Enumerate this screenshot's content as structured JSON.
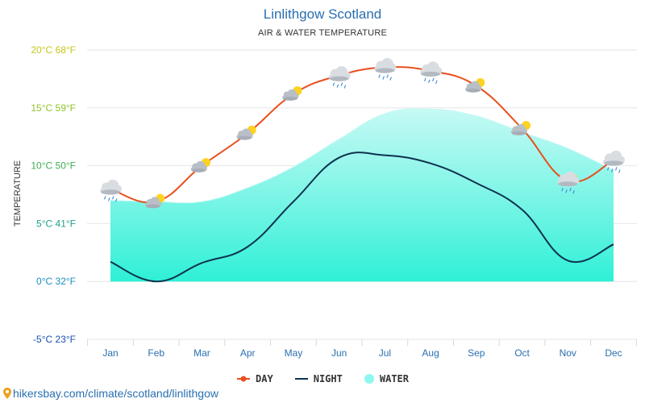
{
  "title": "Linlithgow Scotland",
  "subtitle": "AIR & WATER TEMPERATURE",
  "footer_url": "hikersbay.com/climate/scotland/linlithgow",
  "colors": {
    "day": "#e8501e",
    "night": "#0d3350",
    "water": "#8ff7ee",
    "water_bottom": "#2ef0d6",
    "grid": "#e6e6e6",
    "month_label": "#2a6fb0"
  },
  "legend": [
    {
      "label": "DAY",
      "key": "day",
      "marker": "line-dot"
    },
    {
      "label": "NIGHT",
      "key": "night",
      "marker": "line"
    },
    {
      "label": "WATER",
      "key": "water",
      "marker": "circle"
    }
  ],
  "chart_data": {
    "type": "line",
    "ylabel": "TEMPERATURE",
    "ylim": [
      -5,
      20
    ],
    "yticks": [
      {
        "value": 20,
        "label": "20°C 68°F",
        "color": "#c6c61a"
      },
      {
        "value": 15,
        "label": "15°C 59°F",
        "color": "#8fc52a"
      },
      {
        "value": 10,
        "label": "10°C 50°F",
        "color": "#3fae55"
      },
      {
        "value": 5,
        "label": "5°C 41°F",
        "color": "#1f9f8a"
      },
      {
        "value": 0,
        "label": "0°C 32°F",
        "color": "#1a8fc0"
      },
      {
        "value": -5,
        "label": "-5°C 23°F",
        "color": "#1a4fb0"
      }
    ],
    "categories": [
      "Jan",
      "Feb",
      "Mar",
      "Apr",
      "May",
      "Jun",
      "Jul",
      "Aug",
      "Sep",
      "Oct",
      "Nov",
      "Dec"
    ],
    "series": [
      {
        "name": "DAY",
        "key": "day",
        "values": [
          8.0,
          6.9,
          10.0,
          12.8,
          16.2,
          17.8,
          18.5,
          18.2,
          16.9,
          13.2,
          8.7,
          10.5
        ],
        "icons": [
          "cloud-rain-icon",
          "partly-sunny-icon",
          "partly-sunny-icon",
          "partly-sunny-icon",
          "partly-sunny-icon",
          "cloud-rain-icon",
          "cloud-rain-icon",
          "cloud-rain-icon",
          "partly-sunny-icon",
          "partly-sunny-icon",
          "sun-rain-icon",
          "cloud-rain-icon"
        ]
      },
      {
        "name": "NIGHT",
        "key": "night",
        "values": [
          1.7,
          0.0,
          1.6,
          3.0,
          6.9,
          10.7,
          10.9,
          10.2,
          8.5,
          6.2,
          1.8,
          3.2
        ]
      },
      {
        "name": "WATER",
        "key": "water",
        "values": [
          7.0,
          6.9,
          6.9,
          8.1,
          9.9,
          12.3,
          14.5,
          14.9,
          14.3,
          12.9,
          11.5,
          9.6
        ]
      }
    ]
  }
}
